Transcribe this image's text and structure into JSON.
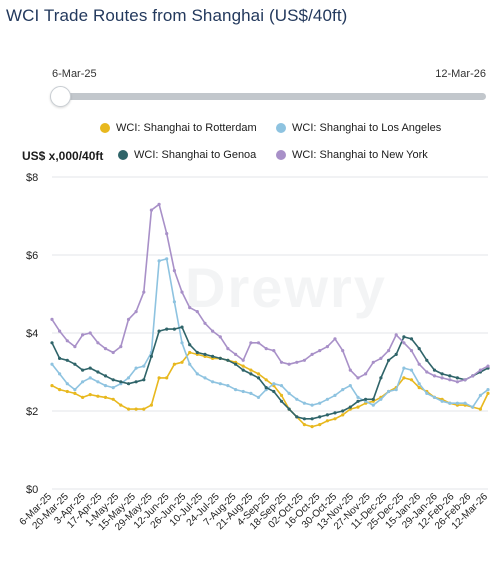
{
  "title": "WCI Trade Routes from Shanghai (US$/40ft)",
  "range": {
    "start": "6-Mar-25",
    "end": "12-Mar-26"
  },
  "y_title": "US$ x,000/40ft",
  "watermark": "Drewry",
  "colors": {
    "rotterdam": "#e8b81e",
    "losangeles": "#8ec3e0",
    "genoa": "#2f6469",
    "newyork": "#a890c8"
  },
  "chart_data": {
    "type": "line",
    "title": "WCI Trade Routes from Shanghai (US$/40ft)",
    "ylabel": "US$ x,000/40ft",
    "ylim": [
      0,
      8
    ],
    "yticks": [
      "$0",
      "$2",
      "$4",
      "$6",
      "$8"
    ],
    "grid": true,
    "legend_position": "top",
    "x_tick_labels": [
      "6-Mar-25",
      "20-Mar-25",
      "3-Apr-25",
      "17-Apr-25",
      "1-May-25",
      "15-May-25",
      "29-May-25",
      "12-Jun-25",
      "26-Jun-25",
      "10-Jul-25",
      "24-Jul-25",
      "7-Aug-25",
      "21-Aug-25",
      "4-Sep-25",
      "18-Sep-25",
      "02-Oct-25",
      "16-Oct-25",
      "30-Oct-25",
      "13-Nov-25",
      "27-Nov-25",
      "11-Dec-25",
      "25-Dec-25",
      "15-Jan-26",
      "29-Jan-26",
      "12-Feb-26",
      "26-Feb-26",
      "12-Mar-26"
    ],
    "series": [
      {
        "name": "WCI: Shanghai to Rotterdam",
        "color": "#e8b81e",
        "values": [
          2.65,
          2.55,
          2.5,
          2.45,
          2.35,
          2.42,
          2.38,
          2.35,
          2.3,
          2.15,
          2.05,
          2.05,
          2.05,
          2.15,
          2.85,
          2.85,
          3.2,
          3.25,
          3.5,
          3.45,
          3.4,
          3.35,
          3.35,
          3.3,
          3.25,
          3.15,
          3.05,
          2.95,
          2.8,
          2.65,
          2.4,
          2.05,
          1.85,
          1.65,
          1.6,
          1.65,
          1.75,
          1.8,
          1.9,
          2.05,
          2.1,
          2.2,
          2.25,
          2.35,
          2.5,
          2.6,
          2.85,
          2.8,
          2.6,
          2.5,
          2.35,
          2.3,
          2.2,
          2.15,
          2.15,
          2.1,
          2.05,
          2.45
        ]
      },
      {
        "name": "WCI: Shanghai to Los Angeles",
        "color": "#8ec3e0",
        "values": [
          3.2,
          2.95,
          2.7,
          2.55,
          2.75,
          2.85,
          2.75,
          2.65,
          2.6,
          2.7,
          2.85,
          3.1,
          3.15,
          3.5,
          5.85,
          5.9,
          4.8,
          3.75,
          3.2,
          2.95,
          2.85,
          2.75,
          2.7,
          2.65,
          2.55,
          2.5,
          2.45,
          2.35,
          2.55,
          2.7,
          2.65,
          2.45,
          2.3,
          2.2,
          2.15,
          2.2,
          2.3,
          2.4,
          2.55,
          2.65,
          2.35,
          2.25,
          2.15,
          2.3,
          2.5,
          2.55,
          3.1,
          3.05,
          2.7,
          2.45,
          2.35,
          2.25,
          2.2,
          2.2,
          2.2,
          2.1,
          2.4,
          2.55
        ]
      },
      {
        "name": "WCI: Shanghai to Genoa",
        "color": "#2f6469",
        "values": [
          3.75,
          3.35,
          3.3,
          3.2,
          3.05,
          3.1,
          3.0,
          2.9,
          2.8,
          2.75,
          2.7,
          2.75,
          2.8,
          3.4,
          4.05,
          4.1,
          4.1,
          4.15,
          3.7,
          3.5,
          3.45,
          3.4,
          3.35,
          3.3,
          3.2,
          3.05,
          2.95,
          2.85,
          2.6,
          2.5,
          2.25,
          2.05,
          1.85,
          1.8,
          1.8,
          1.85,
          1.9,
          1.95,
          2.0,
          2.1,
          2.25,
          2.3,
          2.3,
          2.85,
          3.3,
          3.45,
          3.9,
          3.85,
          3.6,
          3.3,
          3.05,
          2.95,
          2.9,
          2.85,
          2.8,
          2.9,
          3.0,
          3.1
        ]
      },
      {
        "name": "WCI: Shanghai to New York",
        "color": "#a890c8",
        "values": [
          4.35,
          4.05,
          3.8,
          3.65,
          3.95,
          4.0,
          3.75,
          3.6,
          3.5,
          3.65,
          4.35,
          4.55,
          5.05,
          7.15,
          7.3,
          6.55,
          5.6,
          5.05,
          4.65,
          4.55,
          4.25,
          4.05,
          3.9,
          3.6,
          3.45,
          3.3,
          3.75,
          3.75,
          3.6,
          3.55,
          3.25,
          3.2,
          3.25,
          3.3,
          3.45,
          3.55,
          3.65,
          3.85,
          3.55,
          3.05,
          2.85,
          2.95,
          3.25,
          3.35,
          3.55,
          3.95,
          3.75,
          3.55,
          3.2,
          3.0,
          2.9,
          2.85,
          2.8,
          2.75,
          2.8,
          2.9,
          3.05,
          3.15
        ]
      }
    ]
  }
}
